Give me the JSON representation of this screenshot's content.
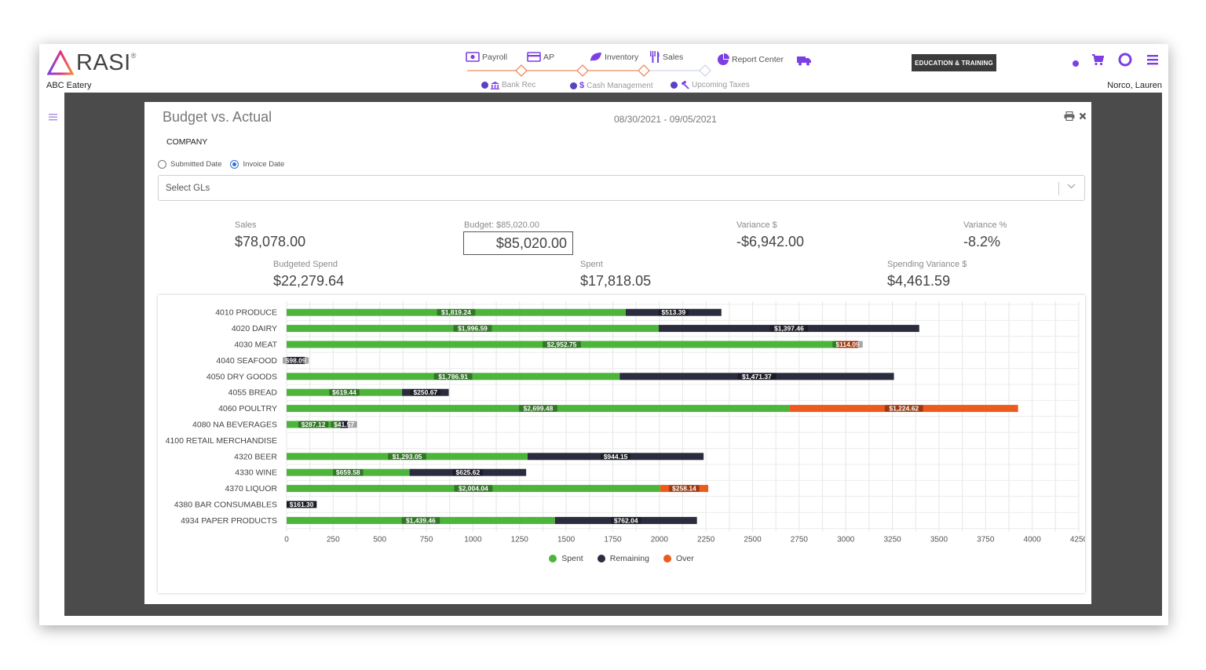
{
  "app": {
    "logo_text": "RASI",
    "company": "ABC Eatery",
    "user": "Norco, Lauren"
  },
  "nav": {
    "items": [
      {
        "label": "Payroll",
        "icon": "payroll-icon"
      },
      {
        "label": "AP",
        "icon": "credit-card-icon"
      },
      {
        "label": "Inventory",
        "icon": "leaf-icon"
      },
      {
        "label": "Sales",
        "icon": "utensils-icon"
      },
      {
        "label": "Report Center",
        "icon": "pie-chart-icon"
      },
      {
        "label": "",
        "icon": "truck-icon"
      }
    ],
    "sub_items": [
      {
        "label": "Bank Rec",
        "icon": "bank-icon"
      },
      {
        "label": "Cash Management",
        "icon": "dollar-icon"
      },
      {
        "label": "Upcoming Taxes",
        "icon": "gavel-icon"
      }
    ],
    "education_button": "EDUCATION & TRAINING",
    "accent_color": "#7b3fe4",
    "milestone_color": "#f08a5d"
  },
  "report": {
    "title": "Budget vs. Actual",
    "date_range": "08/30/2021 - 09/05/2021",
    "company_label": "COMPANY",
    "radio_submitted": "Submitted Date",
    "radio_invoice": "Invoice Date",
    "selected_date_type": "Invoice Date",
    "gl_placeholder": "Select GLs"
  },
  "metrics": {
    "sales_label": "Sales",
    "sales_value": "$78,078.00",
    "budget_label": "Budget: $85,020.00",
    "budget_input": "$85,020.00",
    "variance_label": "Variance $",
    "variance_value": "-$6,942.00",
    "variance_pct_label": "Variance %",
    "variance_pct_value": "-8.2%",
    "budgeted_spend_label": "Budgeted Spend",
    "budgeted_spend_value": "$22,279.64",
    "spent_label": "Spent",
    "spent_value": "$17,818.05",
    "spending_variance_label": "Spending Variance $",
    "spending_variance_value": "$4,461.59"
  },
  "chart_data": {
    "type": "bar",
    "orientation": "horizontal",
    "stacked": true,
    "categories": [
      "4010 PRODUCE",
      "4020 DAIRY",
      "4030 MEAT",
      "4040 SEAFOOD",
      "4050 DRY GOODS",
      "4055 BREAD",
      "4060 POULTRY",
      "4080 NA BEVERAGES",
      "4100 RETAIL MERCHANDISE",
      "4320 BEER",
      "4330 WINE",
      "4370 LIQUOR",
      "4380 BAR CONSUMABLES",
      "4934 PAPER PRODUCTS"
    ],
    "series": [
      {
        "name": "Spent",
        "color": "#4db53c",
        "values": [
          1819.24,
          1996.59,
          2952.75,
          0,
          1786.91,
          619.44,
          2699.48,
          287.12,
          0,
          1293.05,
          659.58,
          2004.04,
          0,
          1439.46
        ],
        "labels": [
          "$1,819.24",
          "$1,996.59",
          "$2,952.75",
          "",
          "$1,786.91",
          "$619.44",
          "$2,699.48",
          "$287.12",
          "",
          "$1,293.05",
          "$659.58",
          "$2,004.04",
          "",
          "$1,439.46"
        ]
      },
      {
        "name": "Remaining",
        "color": "#2b2d3e",
        "values": [
          513.39,
          1397.46,
          0,
          98.09,
          1471.37,
          250.67,
          0,
          41.57,
          0,
          944.15,
          625.62,
          0,
          161.3,
          762.04
        ],
        "labels": [
          "$513.39",
          "$1,397.46",
          "",
          "$98.09",
          "$1,471.37",
          "$250.67",
          "",
          "$41.57",
          "",
          "$944.15",
          "$625.62",
          "",
          "$161.30",
          "$762.04"
        ]
      },
      {
        "name": "Over",
        "color": "#ec5a1d",
        "values": [
          0,
          0,
          114.09,
          0,
          0,
          0,
          1224.62,
          0,
          0,
          0,
          0,
          258.14,
          0,
          0
        ],
        "labels": [
          "",
          "",
          "$114.09",
          "",
          "",
          "",
          "$1,224.62",
          "",
          "",
          "",
          "",
          "$258.14",
          "",
          ""
        ]
      }
    ],
    "xlim": [
      0,
      4250
    ],
    "xticks": [
      0,
      250,
      500,
      750,
      1000,
      1250,
      1500,
      1750,
      2000,
      2250,
      2500,
      2750,
      3000,
      3250,
      3500,
      3750,
      4000,
      4250
    ],
    "grid": true,
    "legend_position": "bottom"
  }
}
